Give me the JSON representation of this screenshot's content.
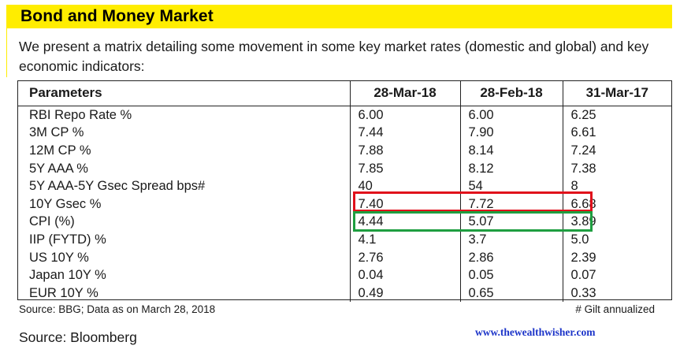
{
  "header": {
    "title": "Bond and Money Market",
    "accent_color": "#ffed00"
  },
  "intro": "We present a matrix detailing some movement in some key market rates (domestic and global) and key economic indicators:",
  "table": {
    "columns": [
      "Parameters",
      "28-Mar-18",
      "28-Feb-18",
      "31-Mar-17"
    ],
    "rows": [
      [
        "RBI Repo Rate %",
        "6.00",
        "6.00",
        "6.25"
      ],
      [
        "3M CP %",
        "7.44",
        "7.90",
        "6.61"
      ],
      [
        "12M CP %",
        "7.88",
        "8.14",
        "7.24"
      ],
      [
        "5Y AAA %",
        "7.85",
        "8.12",
        "7.38"
      ],
      [
        "5Y AAA-5Y Gsec Spread bps#",
        "40",
        "54",
        "8"
      ],
      [
        "10Y Gsec %",
        "7.40",
        "7.72",
        "6.68"
      ],
      [
        "CPI (%)",
        "4.44",
        "5.07",
        "3.89"
      ],
      [
        "IIP (FYTD) %",
        "4.1",
        "3.7",
        "5.0"
      ],
      [
        "US 10Y %",
        "2.76",
        "2.86",
        "2.39"
      ],
      [
        "Japan 10Y %",
        "0.04",
        "0.05",
        "0.07"
      ],
      [
        "EUR 10Y %",
        "0.49",
        "0.65",
        "0.33"
      ]
    ],
    "highlight_colors": {
      "gsec_row": "#e0101b",
      "cpi_row": "#1e9e40"
    }
  },
  "footnotes": {
    "left": "Source: BBG; Data as on March 28, 2018",
    "right": "# Gilt annualized"
  },
  "source": "Source: Bloomberg",
  "website": "www.thewealthwisher.com"
}
